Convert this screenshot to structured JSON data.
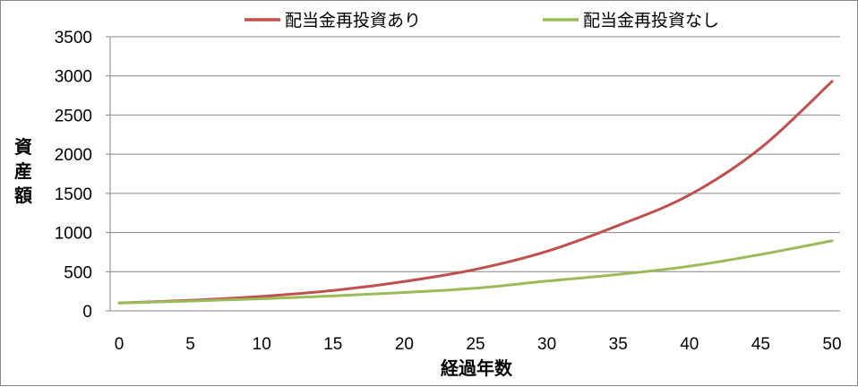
{
  "chart_data": {
    "type": "line",
    "title": "",
    "xlabel": "経過年数",
    "ylabel": "資産額",
    "xlim": [
      0,
      50
    ],
    "ylim": [
      0,
      3500
    ],
    "xticks": [
      0,
      5,
      10,
      15,
      20,
      25,
      30,
      35,
      40,
      45,
      50
    ],
    "yticks": [
      0,
      500,
      1000,
      1500,
      2000,
      2500,
      3000,
      3500
    ],
    "grid": "horizontal",
    "legend_position": "top",
    "series": [
      {
        "name": "配当金再投資あり",
        "color": "#c0504d",
        "x": [
          0,
          5,
          10,
          15,
          20,
          25,
          30,
          35,
          40,
          45,
          50
        ],
        "y": [
          100,
          135,
          185,
          260,
          375,
          530,
          760,
          1090,
          1480,
          2080,
          2930
        ]
      },
      {
        "name": "配当金再投資なし",
        "color": "#9bbb59",
        "x": [
          0,
          5,
          10,
          15,
          20,
          25,
          30,
          35,
          40,
          45,
          50
        ],
        "y": [
          100,
          125,
          155,
          190,
          235,
          290,
          380,
          465,
          570,
          720,
          895
        ]
      }
    ]
  }
}
